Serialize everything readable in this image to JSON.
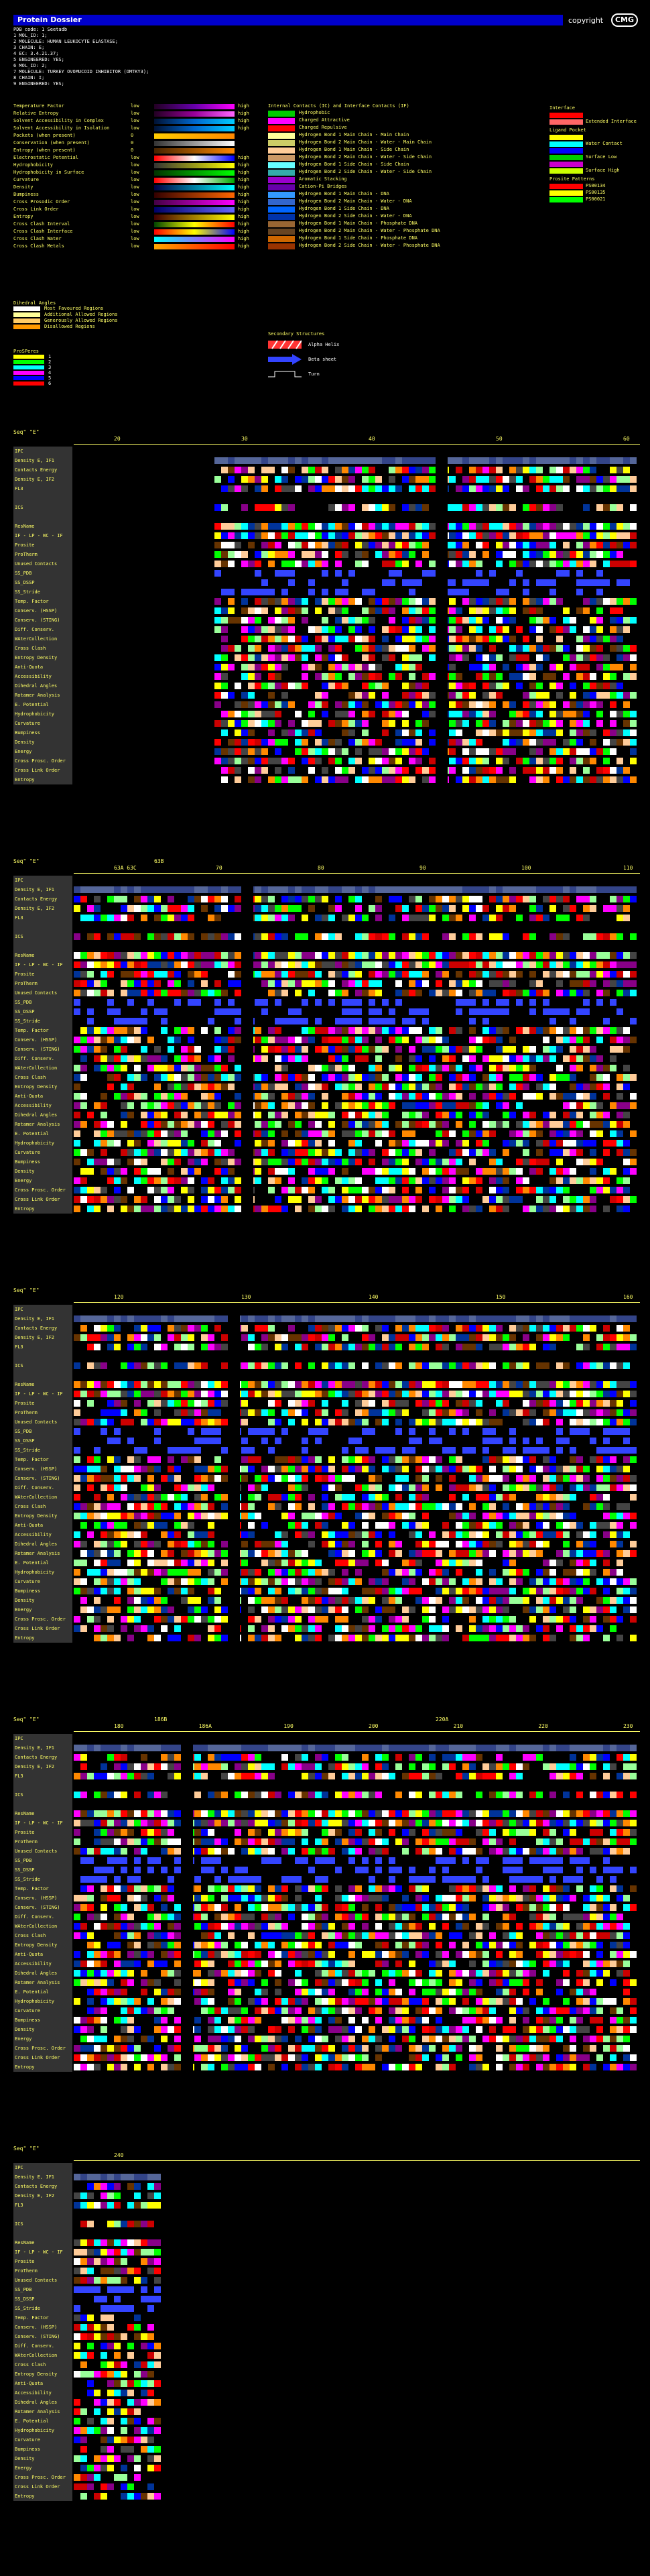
{
  "header": {
    "title": "Protein Dossier",
    "copyright": "copyright",
    "logo": "CMG",
    "lines": [
      "PDB code: 1 Seetadb",
      "  1 MOL_ID: 1;",
      "  2 MOLECULE: HUMAN LEUKOCYTE ELASTASE;",
      "  3 CHAIN: E;",
      "  4 EC: 3.4.21.37;",
      "  5 ENGINEERED: YES;",
      "  6 MOL_ID: 2;",
      "  7 MOLECULE: TURKEY OVOMUCOID INHIBITOR (OMTKY3);",
      "  8 CHAIN: I;",
      "  9 ENGINEERED: YES;"
    ]
  },
  "scales": [
    {
      "label": "Temperature Factor",
      "low": "low",
      "high": "high",
      "colors": [
        "#220022",
        "#6600aa",
        "#ff00ff"
      ]
    },
    {
      "label": "Relative Entropy",
      "low": "low",
      "high": "high",
      "colors": [
        "#220022",
        "#990099",
        "#ff66ff"
      ]
    },
    {
      "label": "Solvent Accessibility in Complex",
      "low": "low",
      "high": "high",
      "colors": [
        "#001133",
        "#0066cc",
        "#00ccff"
      ]
    },
    {
      "label": "Solvent Accessibility in Isolation",
      "low": "low",
      "high": "high",
      "colors": [
        "#001133",
        "#0066cc",
        "#00ccff"
      ]
    },
    {
      "label": "Pockets (when present)",
      "low": "0",
      "high": "",
      "colors": [
        "#ffcc00",
        "#ff8800"
      ]
    },
    {
      "label": "Conservation (when present)",
      "low": "0",
      "high": "",
      "colors": [
        "#333333",
        "#ffffff"
      ]
    },
    {
      "label": "Entropy (when present)",
      "low": "0",
      "high": "",
      "colors": [
        "#442200",
        "#ff8800"
      ]
    },
    {
      "label": "Electrostatic Potential",
      "low": "low",
      "high": "high",
      "colors": [
        "#ff0000",
        "#ffffff",
        "#0000ff"
      ]
    },
    {
      "label": "Hydrophobicity",
      "low": "low",
      "high": "high",
      "colors": [
        "#333333",
        "#ffff00"
      ]
    },
    {
      "label": "Hydrophobicity in Surface",
      "low": "low",
      "high": "high",
      "colors": [
        "#003300",
        "#00ff00"
      ]
    },
    {
      "label": "Curvature",
      "low": "low",
      "high": "high",
      "colors": [
        "#ff0000",
        "#ffffff",
        "#00aa00"
      ]
    },
    {
      "label": "Density",
      "low": "low",
      "high": "high",
      "colors": [
        "#000044",
        "#00ffff"
      ]
    },
    {
      "label": "Bumpiness",
      "low": "low",
      "high": "high",
      "colors": [
        "#330000",
        "#ff6600"
      ]
    },
    {
      "label": "Cross Prosodic Order",
      "low": "low",
      "high": "high",
      "colors": [
        "#440044",
        "#ff00ff"
      ]
    },
    {
      "label": "Cross Link Order",
      "low": "low",
      "high": "high",
      "colors": [
        "#000066",
        "#6666ff"
      ]
    },
    {
      "label": "Entropy",
      "low": "low",
      "high": "high",
      "colors": [
        "#440000",
        "#ffff00"
      ]
    },
    {
      "label": "Cross Clash Interval",
      "low": "low",
      "high": "high",
      "colors": [
        "#004400",
        "#ffff00",
        "#ff0000"
      ]
    },
    {
      "label": "Cross Clash Interface",
      "low": "low",
      "high": "high",
      "colors": [
        "#ff0000",
        "#ffff00",
        "#0000ff"
      ]
    },
    {
      "label": "Cross Clash Water",
      "low": "low",
      "high": "high",
      "colors": [
        "#00ffff",
        "#ff00ff"
      ]
    },
    {
      "label": "Cross Clash Metals",
      "low": "low",
      "high": "high",
      "colors": [
        "#ffaa00",
        "#ff0000"
      ]
    }
  ],
  "contacts": {
    "title": "Internal Contacts (IC) and Interface Contacts (IF)",
    "items": [
      {
        "label": "Hydrophobic",
        "color": "#00cc00"
      },
      {
        "label": "Charged Attractive",
        "color": "#ff00ff"
      },
      {
        "label": "Charged Repulsive",
        "color": "#ff0000"
      },
      {
        "label": "Hydrogen Bond 1 Main Chain - Main Chain",
        "color": "#ffff99"
      },
      {
        "label": "Hydrogen Bond 2 Main Chain - Water - Main Chain",
        "color": "#cccc66"
      },
      {
        "label": "Hydrogen Bond 1 Main Chain - Side Chain",
        "color": "#ffcc99"
      },
      {
        "label": "Hydrogen Bond 2 Main Chain - Water - Side Chain",
        "color": "#cc9966"
      },
      {
        "label": "Hydrogen Bond 1 Side Chain - Side Chain",
        "color": "#66ffff"
      },
      {
        "label": "Hydrogen Bond 2 Side Chain - Water - Side Chain",
        "color": "#33aaaa"
      },
      {
        "label": "Aromatic Stacking",
        "color": "#9900cc"
      },
      {
        "label": "Cation-Pi Bridges",
        "color": "#6600aa"
      },
      {
        "label": "Hydrogen Bond 1 Main Chain - DNA",
        "color": "#3399ff"
      },
      {
        "label": "Hydrogen Bond 2 Main Chain - Water - DNA",
        "color": "#3366cc"
      },
      {
        "label": "Hydrogen Bond 1 Side Chain - DNA",
        "color": "#0066ff"
      },
      {
        "label": "Hydrogen Bond 2 Side Chain - Water - DNA",
        "color": "#0033aa"
      },
      {
        "label": "Hydrogen Bond 1 Main Chain - Phosphate DNA",
        "color": "#996633"
      },
      {
        "label": "Hydrogen Bond 2 Main Chain - Water - Phosphate DNA",
        "color": "#664422"
      },
      {
        "label": "Hydrogen Bond 1 Side Chain - Phosphate DNA",
        "color": "#cc6600"
      },
      {
        "label": "Hydrogen Bond 2 Side Chain - Water - Phosphate DNA",
        "color": "#993300"
      }
    ]
  },
  "right_legend": {
    "interface_title": "Interface",
    "interface": [
      {
        "label": "",
        "color": "#ff0000"
      },
      {
        "label": "Extended Interface",
        "color": "#ff6666"
      }
    ],
    "ligand_title": "Ligand Pocket",
    "ligand": [
      {
        "label": "",
        "color": "#ffff00"
      },
      {
        "label": "Water Contact",
        "color": "#00ffff"
      },
      {
        "label": "",
        "color": "#0000ff"
      },
      {
        "label": "Surface Low",
        "color": "#00cc00"
      },
      {
        "label": "",
        "color": "#cc00cc"
      },
      {
        "label": "Surface High",
        "color": "#ccff00"
      }
    ],
    "prosite_title": "Prosite Patterns",
    "prosite": [
      {
        "label": "PS00134",
        "color": "#ff0000"
      },
      {
        "label": "PS00135",
        "color": "#ffff00"
      },
      {
        "label": "PS00021",
        "color": "#00ff00"
      }
    ]
  },
  "dihedral": {
    "title": "Dihedral Angles",
    "items": [
      {
        "label": "Most Favoured Regions",
        "color": "#ffffff"
      },
      {
        "label": "Additional Allowed Regions",
        "color": "#ffff99"
      },
      {
        "label": "Generously Allowed Regions",
        "color": "#ffcc66"
      },
      {
        "label": "Disallowed Regions",
        "color": "#ff9900"
      }
    ]
  },
  "prosite_patterns": {
    "title": "ProSPeres",
    "items": [
      {
        "label": "1",
        "color": "#ffff00"
      },
      {
        "label": "2",
        "color": "#00ff00"
      },
      {
        "label": "3",
        "color": "#00ffff"
      },
      {
        "label": "4",
        "color": "#ff00ff"
      },
      {
        "label": "5",
        "color": "#0000ff"
      },
      {
        "label": "6",
        "color": "#ff0000"
      }
    ]
  },
  "sse": {
    "title": "Secondary Structures",
    "helix": "Alpha Helix",
    "sheet": "Beta sheet",
    "turn": "Turn"
  },
  "track_labels": [
    "IPC",
    "Density E, IF1",
    "Contacts Energy",
    "Density E, IF2",
    "FL3",
    "",
    "ICS",
    "",
    "ResName",
    "IF - LP - WC - IF",
    "Prosite",
    "ProTherm",
    "Unused Contacts",
    "SS_PDB",
    "SS_DSSP",
    "SS_Stride",
    "Temp. Factor",
    "Conserv. (HSSP)",
    "Conserv. (STING)",
    "Diff. Conserv.",
    "WAterCollection",
    "Cross Clash",
    "Entropy Density",
    "Anti-Quota",
    "Accessibility",
    "Dihedral Angles",
    "Rotamer Analysis",
    "E. Potential",
    "Hydrophobicity",
    "Curvature",
    "Bumpiness",
    "Density",
    "Energy",
    "Cross Prosc. Order",
    "Cross Link Order",
    "Entropy"
  ],
  "blocks": [
    {
      "label": "Seq\" \"E\"",
      "ticks": [
        "20",
        "30",
        "40",
        "50",
        "60"
      ],
      "extra": []
    },
    {
      "label": "Seq\" \"E\"",
      "ticks": [
        "63A 63C",
        "70",
        "80",
        "90",
        "100",
        "110"
      ],
      "extra": [
        "63B"
      ]
    },
    {
      "label": "Seq\" \"E\"",
      "ticks": [
        "120",
        "130",
        "140",
        "150",
        "160"
      ],
      "extra": []
    },
    {
      "label": "Seq\" \"E\"",
      "ticks": [
        "180",
        "186A",
        "190",
        "200",
        "210",
        "220",
        "230"
      ],
      "extra": [
        "186B",
        "220A"
      ]
    },
    {
      "label": "Seq\" \"E\"",
      "ticks": [
        "240"
      ],
      "extra": []
    }
  ]
}
